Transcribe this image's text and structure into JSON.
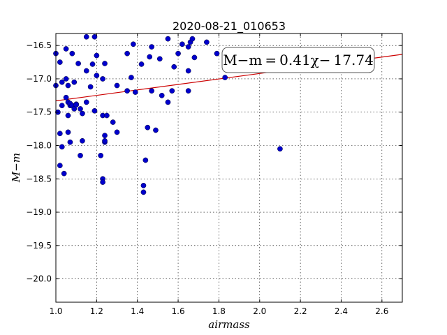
{
  "chart_data": {
    "type": "scatter",
    "title": "2020-08-21_010653",
    "xlabel": "airmass",
    "ylabel": "M−m",
    "xlim": [
      1.0,
      2.7
    ],
    "ylim": [
      -20.35,
      -16.32
    ],
    "y_inverted": false,
    "grid": true,
    "xticks": [
      "1.0",
      "1.2",
      "1.4",
      "1.6",
      "1.8",
      "2.0",
      "2.2",
      "2.4",
      "2.6"
    ],
    "yticks": [
      "−16.5",
      "−17.0",
      "−17.5",
      "−18.0",
      "−18.5",
      "−19.0",
      "−19.5",
      "−20.0"
    ],
    "point_color": "#0000cc",
    "fit_color": "#cc0000",
    "fit": {
      "slope": 0.41,
      "intercept": -17.74
    },
    "annotation": "M−m = 0.41χ− 17.74",
    "points": [
      [
        1.0,
        -16.62
      ],
      [
        1.0,
        -17.1
      ],
      [
        1.01,
        -17.5
      ],
      [
        1.02,
        -17.82
      ],
      [
        1.02,
        -18.3
      ],
      [
        1.02,
        -16.75
      ],
      [
        1.03,
        -17.05
      ],
      [
        1.03,
        -17.4
      ],
      [
        1.03,
        -18.02
      ],
      [
        1.04,
        -18.42
      ],
      [
        1.05,
        -16.55
      ],
      [
        1.05,
        -17.28
      ],
      [
        1.05,
        -17.0
      ],
      [
        1.06,
        -17.55
      ],
      [
        1.06,
        -17.8
      ],
      [
        1.06,
        -17.35
      ],
      [
        1.06,
        -17.1
      ],
      [
        1.07,
        -17.4
      ],
      [
        1.07,
        -17.37
      ],
      [
        1.07,
        -17.95
      ],
      [
        1.08,
        -16.62
      ],
      [
        1.08,
        -17.4
      ],
      [
        1.09,
        -17.45
      ],
      [
        1.09,
        -17.05
      ],
      [
        1.1,
        -17.38
      ],
      [
        1.1,
        -17.39
      ],
      [
        1.11,
        -16.77
      ],
      [
        1.12,
        -17.45
      ],
      [
        1.12,
        -18.15
      ],
      [
        1.13,
        -17.52
      ],
      [
        1.13,
        -17.93
      ],
      [
        1.15,
        -16.88
      ],
      [
        1.15,
        -17.35
      ],
      [
        1.15,
        -16.37
      ],
      [
        1.17,
        -17.12
      ],
      [
        1.18,
        -16.78
      ],
      [
        1.19,
        -16.37
      ],
      [
        1.19,
        -17.48
      ],
      [
        1.2,
        -16.65
      ],
      [
        1.2,
        -16.95
      ],
      [
        1.22,
        -18.15
      ],
      [
        1.23,
        -17.55
      ],
      [
        1.23,
        -17.0
      ],
      [
        1.23,
        -18.5
      ],
      [
        1.23,
        -18.55
      ],
      [
        1.24,
        -16.77
      ],
      [
        1.24,
        -17.85
      ],
      [
        1.24,
        -17.95
      ],
      [
        1.24,
        -17.93
      ],
      [
        1.25,
        -17.55
      ],
      [
        1.28,
        -17.65
      ],
      [
        1.3,
        -17.1
      ],
      [
        1.3,
        -17.8
      ],
      [
        1.35,
        -16.62
      ],
      [
        1.35,
        -17.18
      ],
      [
        1.37,
        -16.98
      ],
      [
        1.38,
        -16.48
      ],
      [
        1.39,
        -17.2
      ],
      [
        1.42,
        -16.78
      ],
      [
        1.43,
        -18.6
      ],
      [
        1.43,
        -18.7
      ],
      [
        1.44,
        -18.22
      ],
      [
        1.45,
        -17.73
      ],
      [
        1.46,
        -16.67
      ],
      [
        1.47,
        -16.52
      ],
      [
        1.47,
        -17.18
      ],
      [
        1.49,
        -17.77
      ],
      [
        1.51,
        -16.7
      ],
      [
        1.52,
        -17.25
      ],
      [
        1.55,
        -16.4
      ],
      [
        1.55,
        -17.35
      ],
      [
        1.57,
        -17.18
      ],
      [
        1.58,
        -16.82
      ],
      [
        1.6,
        -16.62
      ],
      [
        1.62,
        -16.48
      ],
      [
        1.65,
        -16.52
      ],
      [
        1.65,
        -16.88
      ],
      [
        1.65,
        -17.18
      ],
      [
        1.66,
        -16.45
      ],
      [
        1.67,
        -16.4
      ],
      [
        1.68,
        -16.68
      ],
      [
        1.74,
        -16.45
      ],
      [
        1.79,
        -16.62
      ],
      [
        1.83,
        -16.98
      ],
      [
        2.1,
        -18.05
      ]
    ]
  }
}
